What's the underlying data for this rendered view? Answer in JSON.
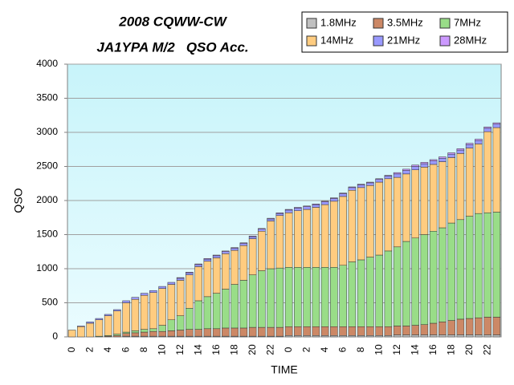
{
  "chart_data": {
    "type": "stacked_bar",
    "title": [
      "2008 CQWW-CW",
      "JA1YPA M/2   QSO Acc."
    ],
    "x_label": "TIME",
    "y_label": "QSO",
    "categories": [
      "0",
      null,
      "2",
      null,
      "4",
      null,
      "6",
      null,
      "8",
      null,
      "10",
      null,
      "12",
      null,
      "14",
      null,
      "16",
      null,
      "18",
      null,
      "20",
      null,
      "22",
      null,
      "0",
      null,
      "2",
      null,
      "4",
      null,
      "6",
      null,
      "8",
      null,
      "10",
      null,
      "12",
      null,
      "14",
      null,
      "16",
      null,
      "18",
      null,
      "20",
      null,
      "22",
      null
    ],
    "series": [
      {
        "name": "1.8MHz",
        "color": "#c0c0c0",
        "values": [
          0,
          0,
          0,
          0,
          0,
          0,
          10,
          10,
          10,
          10,
          10,
          10,
          10,
          10,
          10,
          10,
          10,
          10,
          10,
          10,
          10,
          10,
          10,
          10,
          20,
          20,
          20,
          20,
          20,
          20,
          20,
          20,
          20,
          20,
          20,
          20,
          30,
          30,
          30,
          30,
          30,
          30,
          30,
          30,
          30,
          30,
          30,
          30
        ]
      },
      {
        "name": "3.5MHz",
        "color": "#cc8866",
        "values": [
          0,
          0,
          0,
          0,
          10,
          20,
          40,
          50,
          60,
          70,
          70,
          80,
          90,
          100,
          100,
          110,
          110,
          120,
          120,
          120,
          130,
          130,
          130,
          130,
          130,
          130,
          130,
          130,
          130,
          130,
          130,
          130,
          130,
          130,
          130,
          130,
          130,
          130,
          140,
          150,
          170,
          190,
          210,
          230,
          240,
          250,
          260,
          260
        ]
      },
      {
        "name": "7MHz",
        "color": "#99dd88",
        "values": [
          0,
          0,
          0,
          10,
          10,
          20,
          20,
          30,
          40,
          40,
          90,
          160,
          210,
          310,
          420,
          470,
          520,
          570,
          640,
          700,
          770,
          830,
          860,
          870,
          870,
          870,
          870,
          870,
          870,
          870,
          900,
          950,
          980,
          1020,
          1050,
          1110,
          1160,
          1240,
          1280,
          1320,
          1350,
          1380,
          1430,
          1460,
          1500,
          1530,
          1530,
          1540
        ]
      },
      {
        "name": "14MHz",
        "color": "#ffcc80",
        "values": [
          100,
          150,
          200,
          240,
          290,
          340,
          430,
          460,
          500,
          530,
          540,
          520,
          520,
          490,
          500,
          520,
          520,
          520,
          500,
          510,
          530,
          580,
          700,
          770,
          800,
          830,
          850,
          880,
          920,
          970,
          1010,
          1050,
          1060,
          1050,
          1070,
          1060,
          1020,
          990,
          1000,
          990,
          980,
          970,
          960,
          970,
          1000,
          1020,
          1190,
          1240
        ]
      },
      {
        "name": "21MHz",
        "color": "#9999ff",
        "values": [
          0,
          10,
          20,
          20,
          20,
          20,
          30,
          30,
          30,
          30,
          30,
          30,
          30,
          30,
          30,
          30,
          30,
          30,
          30,
          30,
          30,
          30,
          30,
          30,
          40,
          40,
          40,
          40,
          40,
          40,
          40,
          40,
          40,
          40,
          40,
          40,
          50,
          50,
          50,
          50,
          50,
          50,
          50,
          50,
          50,
          50,
          50,
          50
        ]
      },
      {
        "name": "28MHz",
        "color": "#cc99ff",
        "values": [
          0,
          0,
          0,
          0,
          0,
          0,
          0,
          0,
          0,
          0,
          0,
          0,
          10,
          10,
          10,
          10,
          10,
          10,
          10,
          10,
          10,
          10,
          10,
          10,
          10,
          10,
          10,
          10,
          10,
          10,
          10,
          10,
          10,
          10,
          10,
          10,
          20,
          20,
          20,
          20,
          20,
          20,
          20,
          20,
          20,
          20,
          20,
          20
        ]
      }
    ],
    "ylim": [
      0,
      4000
    ],
    "yticks": [
      0,
      500,
      1000,
      1500,
      2000,
      2500,
      3000,
      3500,
      4000
    ],
    "grid": true
  }
}
